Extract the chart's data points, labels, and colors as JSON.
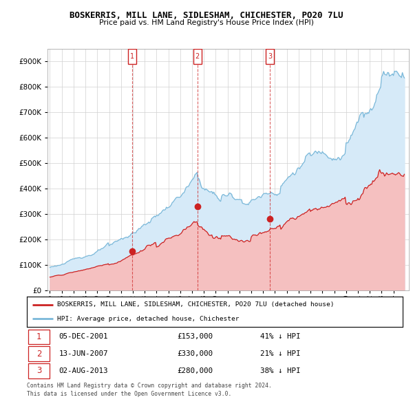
{
  "title": "BOSKERRIS, MILL LANE, SIDLESHAM, CHICHESTER, PO20 7LU",
  "subtitle": "Price paid vs. HM Land Registry's House Price Index (HPI)",
  "legend_line1": "BOSKERRIS, MILL LANE, SIDLESHAM, CHICHESTER, PO20 7LU (detached house)",
  "legend_line2": "HPI: Average price, detached house, Chichester",
  "footer1": "Contains HM Land Registry data © Crown copyright and database right 2024.",
  "footer2": "This data is licensed under the Open Government Licence v3.0.",
  "transactions": [
    {
      "num": 1,
      "date": "05-DEC-2001",
      "price": "£153,000",
      "pct": "41% ↓ HPI",
      "x_year": 2001.92,
      "y_price": 153000
    },
    {
      "num": 2,
      "date": "13-JUN-2007",
      "price": "£330,000",
      "pct": "21% ↓ HPI",
      "x_year": 2007.45,
      "y_price": 330000
    },
    {
      "num": 3,
      "date": "02-AUG-2013",
      "price": "£280,000",
      "pct": "38% ↓ HPI",
      "x_year": 2013.58,
      "y_price": 280000
    }
  ],
  "hpi_color": "#7ab8d9",
  "hpi_fill_color": "#d6eaf8",
  "price_color": "#cc2222",
  "vline_color": "#cc2222",
  "box_color": "#cc2222",
  "background_color": "#ffffff",
  "grid_color": "#d0d0d0",
  "ylim": [
    0,
    950000
  ],
  "xlim_start": 1994.8,
  "xlim_end": 2025.3,
  "yticks": [
    0,
    100000,
    200000,
    300000,
    400000,
    500000,
    600000,
    700000,
    800000,
    900000
  ],
  "xtick_labels": [
    "95",
    "96",
    "97",
    "98",
    "99",
    "00",
    "01",
    "02",
    "03",
    "04",
    "05",
    "06",
    "07",
    "08",
    "09",
    "10",
    "11",
    "12",
    "13",
    "14",
    "15",
    "16",
    "17",
    "18",
    "19",
    "20",
    "21",
    "22",
    "23",
    "24"
  ],
  "xtick_years": [
    1995,
    1996,
    1997,
    1998,
    1999,
    2000,
    2001,
    2002,
    2003,
    2004,
    2005,
    2006,
    2007,
    2008,
    2009,
    2010,
    2011,
    2012,
    2013,
    2014,
    2015,
    2016,
    2017,
    2018,
    2019,
    2020,
    2021,
    2022,
    2023,
    2024
  ]
}
